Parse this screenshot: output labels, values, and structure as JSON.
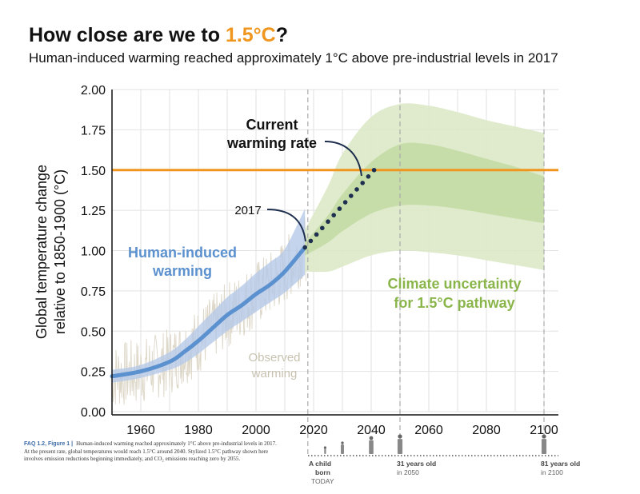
{
  "header": {
    "title_prefix": "How close are we to ",
    "title_highlight": "1.5°C",
    "title_suffix": "?",
    "subtitle": "Human-induced warming reached approximately 1°C above pre-industrial levels in 2017"
  },
  "caption": {
    "figure_label": "FAQ 1.2, Figure 1 |",
    "text": "Human-induced warming reached approximately 1°C above pre-industrial levels in 2017. At the present rate, global temperatures would reach 1.5°C around 2040. Stylized 1.5°C pathway shown here involves emission reductions beginning immediately, and CO₂ emissions reaching zero by 2055."
  },
  "chart_data": {
    "type": "line",
    "ylabel_line1": "Global temperature change",
    "ylabel_line2": "relative to 1850-1900 (°C)",
    "xlim": [
      1950,
      2105
    ],
    "ylim": [
      0,
      2.0
    ],
    "x_ticks": [
      1960,
      1980,
      2000,
      2020,
      2040,
      2060,
      2080,
      2100
    ],
    "y_ticks": [
      "0.00",
      "0.25",
      "0.50",
      "0.75",
      "1.00",
      "1.25",
      "1.50",
      "1.75",
      "2.00"
    ],
    "y_tick_values": [
      0,
      0.25,
      0.5,
      0.75,
      1.0,
      1.25,
      1.5,
      1.75,
      2.0
    ],
    "grid": true,
    "threshold": {
      "y": 1.5,
      "color": "#f0961e"
    },
    "series": [
      {
        "name": "Human-induced warming",
        "color": "#5b91cf",
        "x": [
          1950,
          1960,
          1970,
          1975,
          1980,
          1985,
          1990,
          1995,
          2000,
          2005,
          2010,
          2017
        ],
        "y": [
          0.22,
          0.25,
          0.31,
          0.37,
          0.44,
          0.52,
          0.6,
          0.66,
          0.73,
          0.79,
          0.87,
          1.02
        ],
        "band_low": [
          0.18,
          0.21,
          0.26,
          0.3,
          0.36,
          0.43,
          0.5,
          0.56,
          0.62,
          0.68,
          0.74,
          0.85
        ],
        "band_high": [
          0.26,
          0.29,
          0.37,
          0.44,
          0.53,
          0.62,
          0.71,
          0.78,
          0.86,
          0.93,
          1.01,
          1.26
        ]
      },
      {
        "name": "Current warming rate",
        "color": "#1d2e4e",
        "x": [
          2017,
          2019,
          2021,
          2023,
          2025,
          2027,
          2029,
          2031,
          2033,
          2035,
          2037,
          2039,
          2041
        ],
        "y": [
          1.02,
          1.06,
          1.1,
          1.14,
          1.18,
          1.22,
          1.26,
          1.3,
          1.34,
          1.38,
          1.42,
          1.46,
          1.5
        ]
      },
      {
        "name": "Climate uncertainty for 1.5°C pathway",
        "color": "#8ab54a",
        "x": [
          2017,
          2025,
          2030,
          2040,
          2050,
          2060,
          2070,
          2080,
          2090,
          2100
        ],
        "outer_low": [
          0.87,
          0.87,
          0.9,
          0.97,
          1.0,
          0.99,
          0.97,
          0.94,
          0.91,
          0.88
        ],
        "outer_high": [
          1.13,
          1.4,
          1.6,
          1.83,
          1.91,
          1.9,
          1.86,
          1.81,
          1.77,
          1.73
        ],
        "inner_low": [
          0.97,
          1.05,
          1.12,
          1.23,
          1.28,
          1.28,
          1.26,
          1.23,
          1.2,
          1.17
        ],
        "inner_high": [
          1.05,
          1.22,
          1.35,
          1.55,
          1.66,
          1.66,
          1.62,
          1.57,
          1.52,
          1.46
        ]
      }
    ],
    "observed_warming_label": "Observed warming",
    "vlines": [
      2018,
      2050,
      2100
    ],
    "annotations": {
      "current_rate": [
        "Current",
        "warming rate"
      ],
      "year_2017": "2017",
      "human_induced": [
        "Human-induced",
        "warming"
      ],
      "observed": [
        "Observed",
        "warming"
      ],
      "climate_uncertainty": [
        "Climate uncertainty",
        "for 1.5°C pathway"
      ]
    },
    "timeline": [
      {
        "label": "A child",
        "label2": "born",
        "sub": "TODAY",
        "year": 2018
      },
      {
        "label": "31 years old",
        "sub": "in 2050",
        "year": 2050
      },
      {
        "label": "81 years old",
        "sub": "in 2100",
        "year": 2100
      }
    ],
    "timeline_figures_years": [
      2024,
      2030,
      2040,
      2050,
      2100
    ]
  }
}
